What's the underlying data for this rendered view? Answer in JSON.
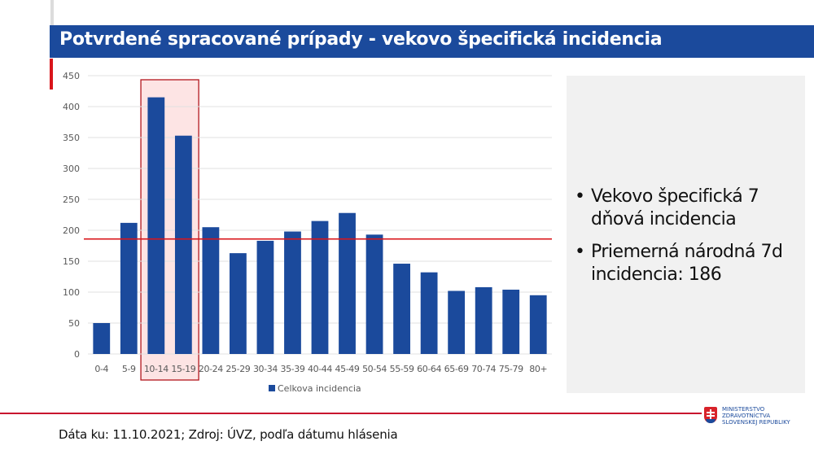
{
  "slide": {
    "title": "Potvrdené spracované prípady - vekovo špecifická incidencia",
    "footer_source": "Dáta ku: 11.10.2021; Zdroj: ÚVZ, podľa dátumu hlásenia",
    "logo": {
      "line1": "MINISTERSTVO",
      "line2": "ZDRAVOTNÍCTVA",
      "line3": "SLOVENSKEJ REPUBLIKY"
    },
    "panel": {
      "bullets": [
        "Vekovo špecifická 7 dňová incidencia",
        "Priemerná národná 7d incidencia: 186"
      ],
      "bullet_glyph": "•"
    },
    "colors": {
      "title_bg": "#1b4a9c",
      "bar": "#1b4a9c",
      "reference_line": "#d9151b",
      "highlight_fill": "#fde4e4",
      "highlight_border": "#b3161d",
      "panel_bg": "#f1f1f1"
    }
  },
  "chart_data": {
    "type": "bar",
    "title": "",
    "xlabel": "",
    "ylabel": "",
    "categories": [
      "0-4",
      "5-9",
      "10-14",
      "15-19",
      "20-24",
      "25-29",
      "30-34",
      "35-39",
      "40-44",
      "45-49",
      "50-54",
      "55-59",
      "60-64",
      "65-69",
      "70-74",
      "75-79",
      "80+"
    ],
    "series": [
      {
        "name": "Celkova incidencia",
        "values": [
          50,
          212,
          415,
          353,
          205,
          163,
          183,
          198,
          215,
          228,
          193,
          146,
          132,
          102,
          108,
          104,
          95
        ]
      }
    ],
    "ylim": [
      0,
      450
    ],
    "yticks": [
      0,
      50,
      100,
      150,
      200,
      250,
      300,
      350,
      400,
      450
    ],
    "grid": true,
    "legend_position": "bottom",
    "reference_line": {
      "value": 186,
      "label": "Priemerná národná 7d incidencia"
    },
    "highlighted_categories": [
      "10-14",
      "15-19"
    ]
  }
}
